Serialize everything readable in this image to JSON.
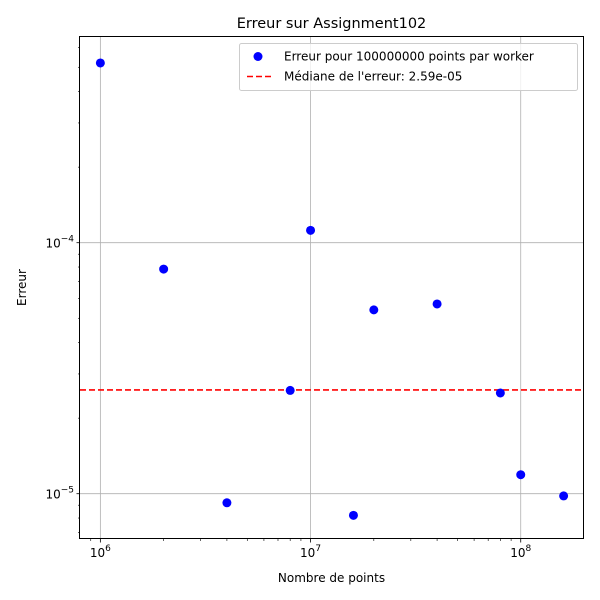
{
  "chart_data": {
    "type": "scatter",
    "title": "Erreur sur Assignment102",
    "xlabel": "Nombre de points",
    "ylabel": "Erreur",
    "xscale": "log",
    "yscale": "log",
    "xlim": [
      800000,
      200000000
    ],
    "ylim": [
      6.6e-06,
      0.00066
    ],
    "grid": true,
    "legend_position": "top-right",
    "x_ticks": [
      {
        "value": 1000000,
        "base": "10",
        "exp": "6"
      },
      {
        "value": 10000000,
        "base": "10",
        "exp": "7"
      },
      {
        "value": 100000000,
        "base": "10",
        "exp": "8"
      }
    ],
    "y_ticks": [
      {
        "value": 1e-05,
        "base": "10",
        "exp": "−5"
      },
      {
        "value": 0.0001,
        "base": "10",
        "exp": "−4"
      }
    ],
    "series": [
      {
        "name": "Erreur pour 100000000 points par worker",
        "color": "#0000ff",
        "points": [
          {
            "x": 1000000,
            "y": 0.00052
          },
          {
            "x": 2000000,
            "y": 7.85e-05
          },
          {
            "x": 4000000,
            "y": 9.2e-06
          },
          {
            "x": 8000000,
            "y": 2.58e-05
          },
          {
            "x": 10000000,
            "y": 0.000112
          },
          {
            "x": 16000000,
            "y": 8.2e-06
          },
          {
            "x": 20000000,
            "y": 5.4e-05
          },
          {
            "x": 40000000,
            "y": 5.7e-05
          },
          {
            "x": 80000000,
            "y": 2.52e-05
          },
          {
            "x": 100000000,
            "y": 1.19e-05
          },
          {
            "x": 160000000,
            "y": 9.8e-06
          }
        ]
      }
    ],
    "reference_line": {
      "label": "Médiane de l'erreur: 2.59e-05",
      "y": 2.59e-05,
      "color": "#ff0000",
      "style": "dashed"
    }
  }
}
